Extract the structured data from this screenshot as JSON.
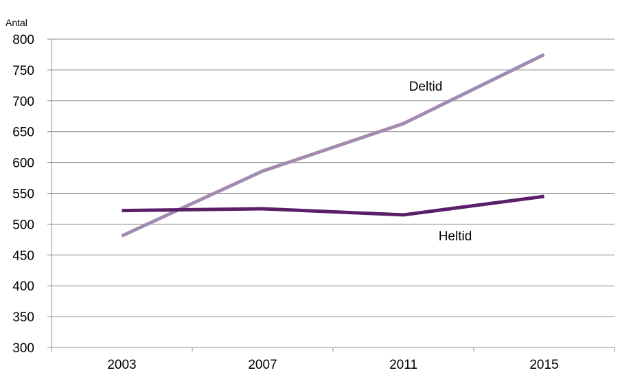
{
  "chart_data": {
    "type": "line",
    "title": "",
    "xlabel": "",
    "ylabel": "Antal",
    "categories": [
      "2003",
      "2007",
      "2011",
      "2015"
    ],
    "y_ticks": [
      "300",
      "350",
      "400",
      "450",
      "500",
      "550",
      "600",
      "650",
      "700",
      "750",
      "800"
    ],
    "ylim": [
      300,
      800
    ],
    "grid": true,
    "legend": "inline labels",
    "series": [
      {
        "name": "Deltid",
        "values": [
          481,
          586,
          663,
          775
        ],
        "color": "#a28baf"
      },
      {
        "name": "Heltid",
        "values": [
          522,
          525,
          515,
          545
        ],
        "color": "#5b1f6a"
      }
    ]
  }
}
